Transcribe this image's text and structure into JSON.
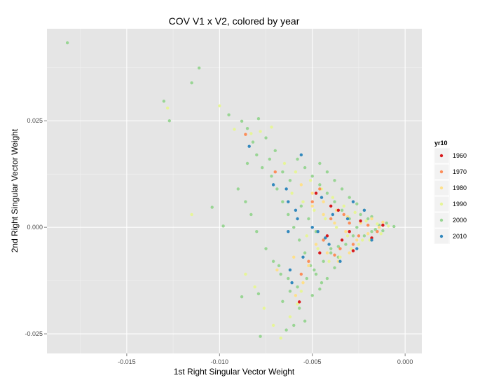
{
  "chart_data": {
    "type": "scatter",
    "title": "COV V1 x V2, colored by year",
    "xlabel": "1st Right Singular Vector Weight",
    "ylabel": "2nd Right Singular Vector Weight",
    "xlim": [
      -0.0193,
      0.0009
    ],
    "ylim": [
      -0.0296,
      0.0466
    ],
    "x_ticks": [
      -0.015,
      -0.01,
      -0.005,
      0.0
    ],
    "x_tick_labels": [
      "-0.015",
      "-0.010",
      "-0.005",
      "0.000"
    ],
    "y_ticks": [
      -0.025,
      0.0,
      0.025
    ],
    "y_tick_labels": [
      "-0.025",
      "0.000",
      "0.025"
    ],
    "grid": true,
    "legend": {
      "title": "yr10",
      "placement": "right",
      "entries": [
        {
          "label": "1960",
          "color": "#d7191c"
        },
        {
          "label": "1970",
          "color": "#fc8d59"
        },
        {
          "label": "1980",
          "color": "#fee08b"
        },
        {
          "label": "1990",
          "color": "#e6f598"
        },
        {
          "label": "2000",
          "color": "#99d594"
        },
        {
          "label": "2010",
          "color": "#3288bd"
        }
      ]
    },
    "series": [
      {
        "name": "2000",
        "color": "#99d594",
        "points": [
          [
            -0.0182,
            0.0433
          ],
          [
            -0.0111,
            0.0374
          ],
          [
            -0.0115,
            0.0339
          ],
          [
            -0.013,
            0.0296
          ],
          [
            -0.0127,
            0.025
          ],
          [
            -0.0095,
            0.0264
          ],
          [
            -0.0104,
            0.0047
          ],
          [
            -0.0098,
            0.0003
          ],
          [
            -0.0088,
            0.0249
          ],
          [
            -0.0085,
            0.0232
          ],
          [
            -0.0079,
            0.0255
          ],
          [
            -0.0088,
            -0.0163
          ],
          [
            -0.0079,
            -0.0156
          ],
          [
            -0.0078,
            -0.0256
          ],
          [
            -0.0066,
            -0.0174
          ],
          [
            -0.0064,
            -0.0241
          ],
          [
            -0.006,
            -0.023
          ],
          [
            -0.0057,
            -0.019
          ],
          [
            -0.0054,
            -0.022
          ],
          [
            -0.0077,
            0.014
          ],
          [
            -0.0072,
            0.012
          ],
          [
            -0.0069,
            0.009
          ],
          [
            -0.0066,
            0.006
          ],
          [
            -0.0063,
            0.003
          ],
          [
            -0.006,
            0.0
          ],
          [
            -0.0057,
            -0.003
          ],
          [
            -0.0054,
            -0.006
          ],
          [
            -0.0051,
            -0.009
          ],
          [
            -0.0048,
            -0.011
          ],
          [
            -0.0045,
            -0.013
          ],
          [
            -0.0058,
            0.016
          ],
          [
            -0.0054,
            0.014
          ],
          [
            -0.005,
            0.012
          ],
          [
            -0.0046,
            0.01
          ],
          [
            -0.0042,
            0.008
          ],
          [
            -0.0038,
            0.006
          ],
          [
            -0.0034,
            0.004
          ],
          [
            -0.003,
            0.002
          ],
          [
            -0.0026,
            0.0
          ],
          [
            -0.0022,
            -0.002
          ],
          [
            -0.0018,
            -0.001
          ],
          [
            -0.0014,
            0.0005
          ],
          [
            -0.001,
            0.001
          ],
          [
            -0.0006,
            0.0002
          ],
          [
            -0.0036,
            -0.007
          ],
          [
            -0.004,
            -0.005
          ],
          [
            -0.0044,
            -0.003
          ],
          [
            -0.0048,
            -0.001
          ],
          [
            -0.0052,
            0.002
          ],
          [
            -0.0056,
            0.005
          ],
          [
            -0.0032,
            -0.004
          ],
          [
            -0.0028,
            -0.002
          ],
          [
            -0.0024,
            0.003
          ],
          [
            -0.002,
            0.002
          ],
          [
            -0.0016,
            -0.0005
          ],
          [
            -0.0012,
            -0.0008
          ],
          [
            -0.0062,
            0.011
          ],
          [
            -0.007,
            0.018
          ],
          [
            -0.0075,
            0.021
          ],
          [
            -0.0082,
            0.02
          ],
          [
            -0.0068,
            -0.009
          ],
          [
            -0.0063,
            -0.012
          ],
          [
            -0.0058,
            -0.014
          ],
          [
            -0.0053,
            -0.012
          ],
          [
            -0.0049,
            -0.01
          ],
          [
            -0.0044,
            -0.008
          ],
          [
            -0.004,
            -0.006
          ],
          [
            -0.0036,
            -0.0045
          ],
          [
            -0.0046,
            0.015
          ],
          [
            -0.0042,
            0.013
          ],
          [
            -0.0038,
            0.011
          ],
          [
            -0.0034,
            0.009
          ],
          [
            -0.003,
            0.007
          ],
          [
            -0.0026,
            0.0055
          ],
          [
            -0.0022,
            0.004
          ],
          [
            -0.0018,
            0.0025
          ],
          [
            -0.0085,
            0.015
          ],
          [
            -0.008,
            0.017
          ],
          [
            -0.0073,
            0.016
          ],
          [
            -0.0066,
            0.013
          ],
          [
            -0.009,
            0.009
          ],
          [
            -0.0086,
            0.006
          ],
          [
            -0.0083,
            0.003
          ],
          [
            -0.008,
            -0.001
          ],
          [
            -0.0075,
            -0.005
          ],
          [
            -0.0071,
            -0.008
          ],
          [
            -0.0067,
            -0.011
          ],
          [
            -0.0062,
            -0.015
          ],
          [
            -0.005,
            -0.016
          ],
          [
            -0.0046,
            -0.0145
          ],
          [
            -0.0042,
            -0.012
          ],
          [
            -0.0038,
            -0.0095
          ]
        ]
      },
      {
        "name": "1990",
        "color": "#e6f598",
        "points": [
          [
            -0.0128,
            0.028
          ],
          [
            -0.01,
            0.0285
          ],
          [
            -0.0115,
            0.003
          ],
          [
            -0.0092,
            0.023
          ],
          [
            -0.0083,
            0.022
          ],
          [
            -0.0078,
            0.0225
          ],
          [
            -0.0072,
            0.0235
          ],
          [
            -0.0086,
            -0.011
          ],
          [
            -0.0081,
            -0.014
          ],
          [
            -0.0076,
            -0.019
          ],
          [
            -0.0071,
            -0.023
          ],
          [
            -0.0067,
            -0.026
          ],
          [
            -0.0062,
            -0.021
          ],
          [
            -0.0058,
            -0.018
          ],
          [
            -0.0056,
            -0.015
          ],
          [
            -0.0061,
            0.008
          ],
          [
            -0.0055,
            0.006
          ],
          [
            -0.0049,
            0.004
          ],
          [
            -0.0043,
            0.002
          ],
          [
            -0.0037,
            0.0
          ],
          [
            -0.0031,
            -0.002
          ],
          [
            -0.0025,
            -0.004
          ],
          [
            -0.0019,
            -0.003
          ],
          [
            -0.0013,
            -0.0015
          ],
          [
            -0.0053,
            -0.002
          ],
          [
            -0.0047,
            -0.005
          ],
          [
            -0.0041,
            -0.008
          ],
          [
            -0.0035,
            -0.007
          ],
          [
            -0.0029,
            -0.005
          ],
          [
            -0.0023,
            -0.003
          ],
          [
            -0.0065,
            0.015
          ],
          [
            -0.0059,
            0.013
          ],
          [
            -0.0051,
            0.011
          ],
          [
            -0.0045,
            0.009
          ],
          [
            -0.0039,
            0.007
          ],
          [
            -0.0033,
            0.005
          ],
          [
            -0.0027,
            0.0035
          ],
          [
            -0.0021,
            0.0015
          ],
          [
            -0.0015,
            0.0008
          ],
          [
            -0.0009,
            0.0003
          ]
        ]
      },
      {
        "name": "1980",
        "color": "#fee08b",
        "points": [
          [
            -0.0069,
            -0.01
          ],
          [
            -0.0059,
            -0.016
          ],
          [
            -0.0055,
            -0.013
          ],
          [
            -0.005,
            0.005
          ],
          [
            -0.0044,
            0.003
          ],
          [
            -0.0038,
            0.001
          ],
          [
            -0.0032,
            -0.001
          ],
          [
            -0.0026,
            -0.003
          ],
          [
            -0.002,
            -0.0015
          ],
          [
            -0.0014,
            0.0
          ],
          [
            -0.0048,
            -0.004
          ],
          [
            -0.0042,
            -0.006
          ],
          [
            -0.0036,
            -0.008
          ],
          [
            -0.003,
            -0.006
          ],
          [
            -0.0024,
            0.001
          ],
          [
            -0.0018,
            0.002
          ],
          [
            -0.0012,
            0.0012
          ],
          [
            -0.0056,
            0.01
          ],
          [
            -0.005,
            0.008
          ],
          [
            -0.0044,
            0.006
          ],
          [
            -0.0037,
            0.004
          ],
          [
            -0.0031,
            0.0025
          ],
          [
            -0.006,
            -0.007
          ],
          [
            -0.0052,
            -0.009
          ]
        ]
      },
      {
        "name": "1970",
        "color": "#fc8d59",
        "points": [
          [
            -0.0086,
            0.0218
          ],
          [
            -0.007,
            0.013
          ],
          [
            -0.005,
            0.006
          ],
          [
            -0.0044,
            -0.003
          ],
          [
            -0.004,
            0.002
          ],
          [
            -0.0035,
            -0.005
          ],
          [
            -0.003,
            0.001
          ],
          [
            -0.0025,
            -0.002
          ],
          [
            -0.002,
            0.0005
          ],
          [
            -0.0015,
            -0.001
          ],
          [
            -0.0052,
            -0.008
          ],
          [
            -0.0046,
            0.009
          ],
          [
            -0.0033,
            0.003
          ],
          [
            -0.0028,
            -0.004
          ],
          [
            -0.0056,
            -0.011
          ],
          [
            -0.0038,
            -0.0065
          ]
        ]
      },
      {
        "name": "1960",
        "color": "#d7191c",
        "points": [
          [
            -0.0057,
            -0.0175
          ],
          [
            -0.0048,
            0.008
          ],
          [
            -0.0042,
            -0.002
          ],
          [
            -0.0036,
            0.004
          ],
          [
            -0.003,
            -0.001
          ],
          [
            -0.0024,
            0.0015
          ],
          [
            -0.0018,
            -0.0025
          ],
          [
            -0.0046,
            -0.006
          ],
          [
            -0.004,
            0.005
          ],
          [
            -0.0034,
            -0.003
          ],
          [
            -0.0012,
            0.0005
          ],
          [
            -0.0028,
            -0.0055
          ]
        ]
      },
      {
        "name": "2010",
        "color": "#3288bd",
        "points": [
          [
            -0.0084,
            0.019
          ],
          [
            -0.0071,
            0.01
          ],
          [
            -0.0064,
            0.009
          ],
          [
            -0.0063,
            0.006
          ],
          [
            -0.0059,
            0.004
          ],
          [
            -0.0058,
            0.002
          ],
          [
            -0.0063,
            -0.001
          ],
          [
            -0.0055,
            -0.007
          ],
          [
            -0.0062,
            -0.01
          ],
          [
            -0.0061,
            -0.013
          ],
          [
            -0.0056,
            0.017
          ],
          [
            -0.0045,
            0.007
          ],
          [
            -0.0041,
            -0.004
          ],
          [
            -0.0039,
            0.003
          ],
          [
            -0.0035,
            -0.008
          ],
          [
            -0.0031,
            0.002
          ],
          [
            -0.0026,
            -0.005
          ],
          [
            -0.0022,
            0.004
          ],
          [
            -0.0018,
            -0.003
          ],
          [
            -0.0047,
            -0.001
          ],
          [
            -0.005,
            0.0
          ],
          [
            -0.0043,
            -0.0025
          ],
          [
            -0.0028,
            0.006
          ]
        ]
      }
    ]
  }
}
